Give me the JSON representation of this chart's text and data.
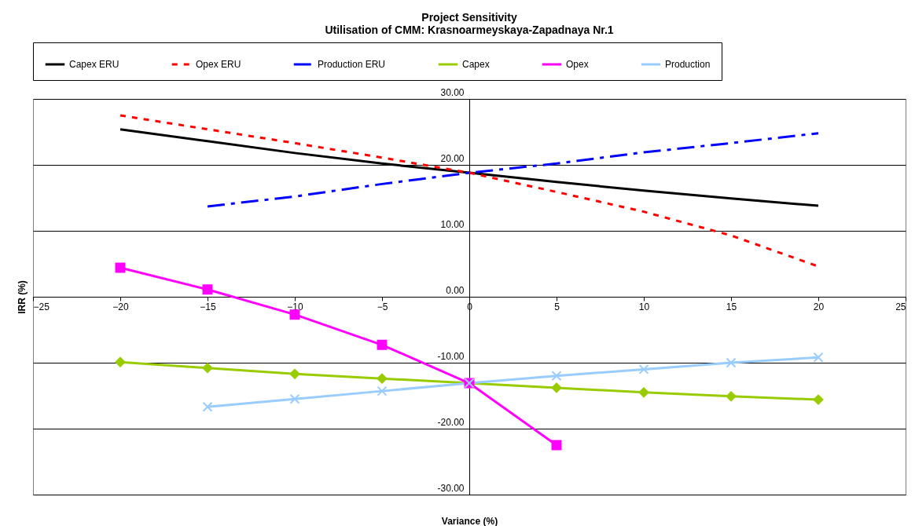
{
  "chart_data": {
    "type": "line",
    "title": "Project Sensitivity",
    "subtitle": "Utilisation of CMM: Krasnoarmeyskaya-Zapadnaya Nr.1",
    "xlabel": "Variance (%)",
    "ylabel": "IRR (%)",
    "x": [
      -20,
      -15,
      -10,
      -5,
      0,
      5,
      10,
      15,
      20
    ],
    "series": [
      {
        "name": "Capex ERU",
        "color": "#000000",
        "line_style": "solid",
        "marker": "none",
        "values": [
          25.4,
          23.6,
          21.8,
          20.2,
          18.8,
          17.4,
          16.1,
          14.9,
          13.8
        ]
      },
      {
        "name": "Opex ERU",
        "color": "#ff0000",
        "line_style": "dotted",
        "marker": "none",
        "values": [
          27.5,
          25.4,
          23.3,
          21.1,
          18.8,
          15.9,
          12.9,
          9.3,
          4.6
        ]
      },
      {
        "name": "Production ERU",
        "color": "#0000ff",
        "line_style": "dashed",
        "marker": "none",
        "values": [
          null,
          13.7,
          15.2,
          17.1,
          18.8,
          20.2,
          21.9,
          23.3,
          24.8
        ]
      },
      {
        "name": "Capex",
        "color": "#99cc00",
        "line_style": "solid",
        "marker": "diamond",
        "values": [
          -9.9,
          -10.8,
          -11.7,
          -12.4,
          -13.1,
          -13.8,
          -14.5,
          -15.1,
          -15.6
        ]
      },
      {
        "name": "Opex",
        "color": "#ff00ff",
        "line_style": "solid",
        "marker": "square",
        "values": [
          4.4,
          1.1,
          -2.7,
          -7.3,
          -13.1,
          -22.5,
          null,
          null,
          null
        ]
      },
      {
        "name": "Production",
        "color": "#99ccff",
        "line_style": "solid",
        "marker": "cross",
        "values": [
          null,
          -16.7,
          -15.5,
          -14.3,
          -13.1,
          -12.0,
          -11.0,
          -10.0,
          -9.2
        ]
      }
    ],
    "xlim": [
      -25,
      25
    ],
    "xticks": [
      -25,
      -20,
      -15,
      -10,
      -5,
      0,
      5,
      10,
      15,
      20,
      25
    ],
    "ylim": [
      -30,
      30
    ],
    "yticks": [
      {
        "value": -30,
        "label": "-30.00"
      },
      {
        "value": -20,
        "label": "-20.00"
      },
      {
        "value": -10,
        "label": "-10.00"
      },
      {
        "value": 0,
        "label": "0.00"
      },
      {
        "value": 10,
        "label": "10.00"
      },
      {
        "value": 20,
        "label": "20.00"
      },
      {
        "value": 30,
        "label": "30.00"
      }
    ],
    "grid": "y",
    "legend": "top"
  }
}
